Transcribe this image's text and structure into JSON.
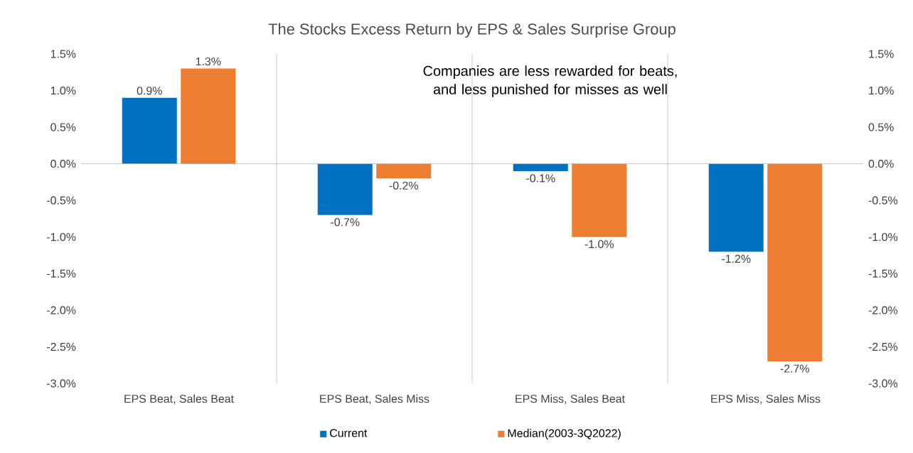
{
  "chart_data": {
    "type": "bar",
    "title": "The Stocks Excess Return by EPS & Sales Surprise Group",
    "categories": [
      "EPS Beat, Sales Beat",
      "EPS Beat, Sales Miss",
      "EPS Miss, Sales Beat",
      "EPS Miss, Sales Miss"
    ],
    "series": [
      {
        "name": "Current",
        "color": "#0070c0",
        "values": [
          0.9,
          -0.7,
          -0.1,
          -1.2
        ],
        "value_labels": [
          "0.9%",
          "-0.7%",
          "-0.1%",
          "-1.2%"
        ]
      },
      {
        "name": "Median(2003-3Q2022)",
        "color": "#ed7d31",
        "values": [
          1.3,
          -0.2,
          -1.0,
          -2.7
        ],
        "value_labels": [
          "1.3%",
          "-0.2%",
          "-1.0%",
          "-2.7%"
        ]
      }
    ],
    "ylim": [
      -3.0,
      1.5
    ],
    "yticks": [
      {
        "value": -3.0,
        "label": "-3.0%"
      },
      {
        "value": -2.5,
        "label": "-2.5%"
      },
      {
        "value": -2.0,
        "label": "-2.0%"
      },
      {
        "value": -1.5,
        "label": "-1.5%"
      },
      {
        "value": -1.0,
        "label": "-1.0%"
      },
      {
        "value": -0.5,
        "label": "-0.5%"
      },
      {
        "value": 0.0,
        "label": "0.0%"
      },
      {
        "value": 0.5,
        "label": "0.5%"
      },
      {
        "value": 1.0,
        "label": "1.0%"
      },
      {
        "value": 1.5,
        "label": "1.5%"
      }
    ],
    "y2lim": [
      -3.0,
      1.5
    ],
    "y2ticks": [
      {
        "value": -3.0,
        "label": "-3.0%"
      },
      {
        "value": -2.5,
        "label": "-2.5%"
      },
      {
        "value": -2.0,
        "label": "-2.0%"
      },
      {
        "value": -1.5,
        "label": "-1.5%"
      },
      {
        "value": -1.0,
        "label": "-1.0%"
      },
      {
        "value": -0.5,
        "label": "-0.5%"
      },
      {
        "value": 0.0,
        "label": "0.0%"
      },
      {
        "value": 0.5,
        "label": "0.5%"
      },
      {
        "value": 1.0,
        "label": "1.0%"
      },
      {
        "value": 1.5,
        "label": "1.5%"
      }
    ],
    "grid": "x",
    "legend": "bottom",
    "annotations": [
      "Companies are less rewarded for beats, and less punished for misses as well"
    ]
  }
}
